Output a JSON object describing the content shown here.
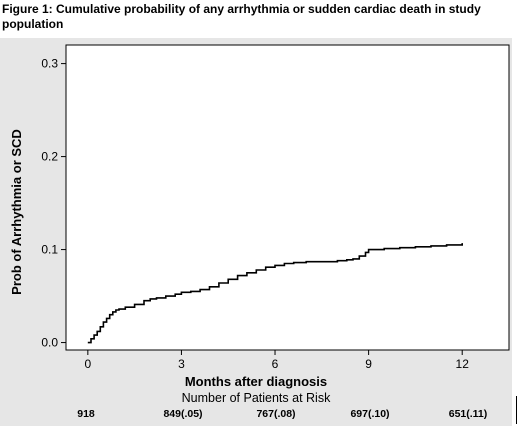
{
  "figure_title": "Figure 1: Cumulative probability of any arrhythmia or sudden cardiac death in study population",
  "chart_data": {
    "type": "line",
    "title": "Figure 1: Cumulative probability of any arrhythmia or sudden cardiac death in study population",
    "xlabel": "Months after diagnosis",
    "ylabel": "Prob of Arrhythmia or SCD",
    "xlim": [
      -0.7,
      13.5
    ],
    "ylim": [
      -0.008,
      0.32
    ],
    "xticks": [
      0,
      3,
      6,
      9,
      12
    ],
    "yticks": [
      0.0,
      0.1,
      0.2,
      0.3
    ],
    "xtick_labels": [
      "0",
      "3",
      "6",
      "9",
      "12"
    ],
    "ytick_labels": [
      "0.0",
      "0.1",
      "0.2",
      "0.3"
    ],
    "grid": false,
    "legend": "none",
    "line_color": "#000000",
    "series": [
      {
        "x": [
          0,
          0.1,
          0.2,
          0.3,
          0.4,
          0.5,
          0.6,
          0.7,
          0.8,
          0.9,
          1.0,
          1.2,
          1.5,
          1.8,
          2.0,
          2.2,
          2.5,
          2.8,
          3.0,
          3.3,
          3.6,
          3.9,
          4.2,
          4.5,
          4.8,
          5.1,
          5.4,
          5.7,
          6.0,
          6.3,
          6.6,
          7.0,
          7.5,
          8.0,
          8.3,
          8.5,
          8.7,
          8.9,
          9.0,
          9.5,
          10.0,
          10.5,
          11.0,
          11.5,
          12.0
        ],
        "y": [
          0.0,
          0.004,
          0.008,
          0.012,
          0.017,
          0.022,
          0.026,
          0.03,
          0.033,
          0.035,
          0.036,
          0.038,
          0.041,
          0.045,
          0.047,
          0.048,
          0.05,
          0.052,
          0.054,
          0.055,
          0.057,
          0.06,
          0.064,
          0.068,
          0.072,
          0.075,
          0.078,
          0.081,
          0.083,
          0.085,
          0.086,
          0.087,
          0.087,
          0.088,
          0.089,
          0.09,
          0.093,
          0.097,
          0.1,
          0.101,
          0.102,
          0.103,
          0.104,
          0.105,
          0.107
        ]
      }
    ]
  },
  "risk_table": {
    "title": "Number of Patients at Risk",
    "counts": [
      "918",
      "849(.05)",
      "767(.08)",
      "697(.10)",
      "651(.11)"
    ]
  }
}
